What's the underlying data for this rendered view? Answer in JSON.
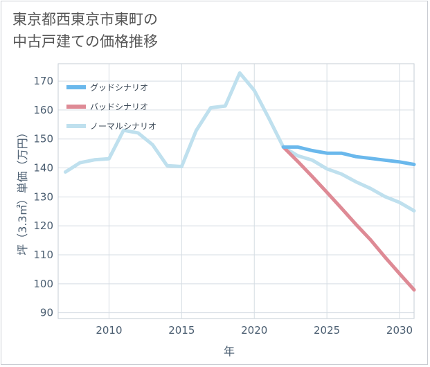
{
  "title_line1": "東京都西東京市東町の",
  "title_line2": "中古戸建ての価格推移",
  "chart_data": {
    "type": "line",
    "xlabel": "年",
    "ylabel": "坪（3.3㎡）単価（万円）",
    "xlim": [
      2006.5,
      2031
    ],
    "ylim": [
      88,
      176
    ],
    "xticks": [
      2010,
      2015,
      2020,
      2025,
      2030
    ],
    "yticks": [
      90,
      100,
      110,
      120,
      130,
      140,
      150,
      160,
      170
    ],
    "grid": true,
    "legend_position": "top-left",
    "series": [
      {
        "name": "グッドシナリオ",
        "color": "#6ab8ec",
        "x": [
          2022,
          2023,
          2024,
          2025,
          2026,
          2027,
          2028,
          2029,
          2030,
          2031
        ],
        "y": [
          147.2,
          147.2,
          146,
          145.1,
          145.1,
          143.9,
          143.3,
          142.7,
          142.1,
          141.2
        ]
      },
      {
        "name": "バッドシナリオ",
        "color": "#de8a95",
        "x": [
          2022,
          2023,
          2024,
          2025,
          2026,
          2027,
          2028,
          2029,
          2030,
          2031
        ],
        "y": [
          147.2,
          142.2,
          137,
          131.6,
          126.1,
          120.5,
          115.2,
          109.2,
          103.5,
          97.9
        ]
      },
      {
        "name": "ノーマルシナリオ",
        "color": "#bfe0ee",
        "x": [
          2007,
          2008,
          2009,
          2010,
          2011,
          2012,
          2013,
          2014,
          2015,
          2016,
          2017,
          2018,
          2019,
          2020,
          2021,
          2022,
          2023,
          2024,
          2025,
          2026,
          2027,
          2028,
          2029,
          2030,
          2031
        ],
        "y": [
          138.6,
          141.8,
          142.8,
          143.2,
          153,
          152.1,
          148,
          140.8,
          140.5,
          152.9,
          160.8,
          161.4,
          172.8,
          166.8,
          157.2,
          147.2,
          144.2,
          142.7,
          139.7,
          137.9,
          135.2,
          132.9,
          130.1,
          128.1,
          125.2
        ]
      }
    ]
  }
}
